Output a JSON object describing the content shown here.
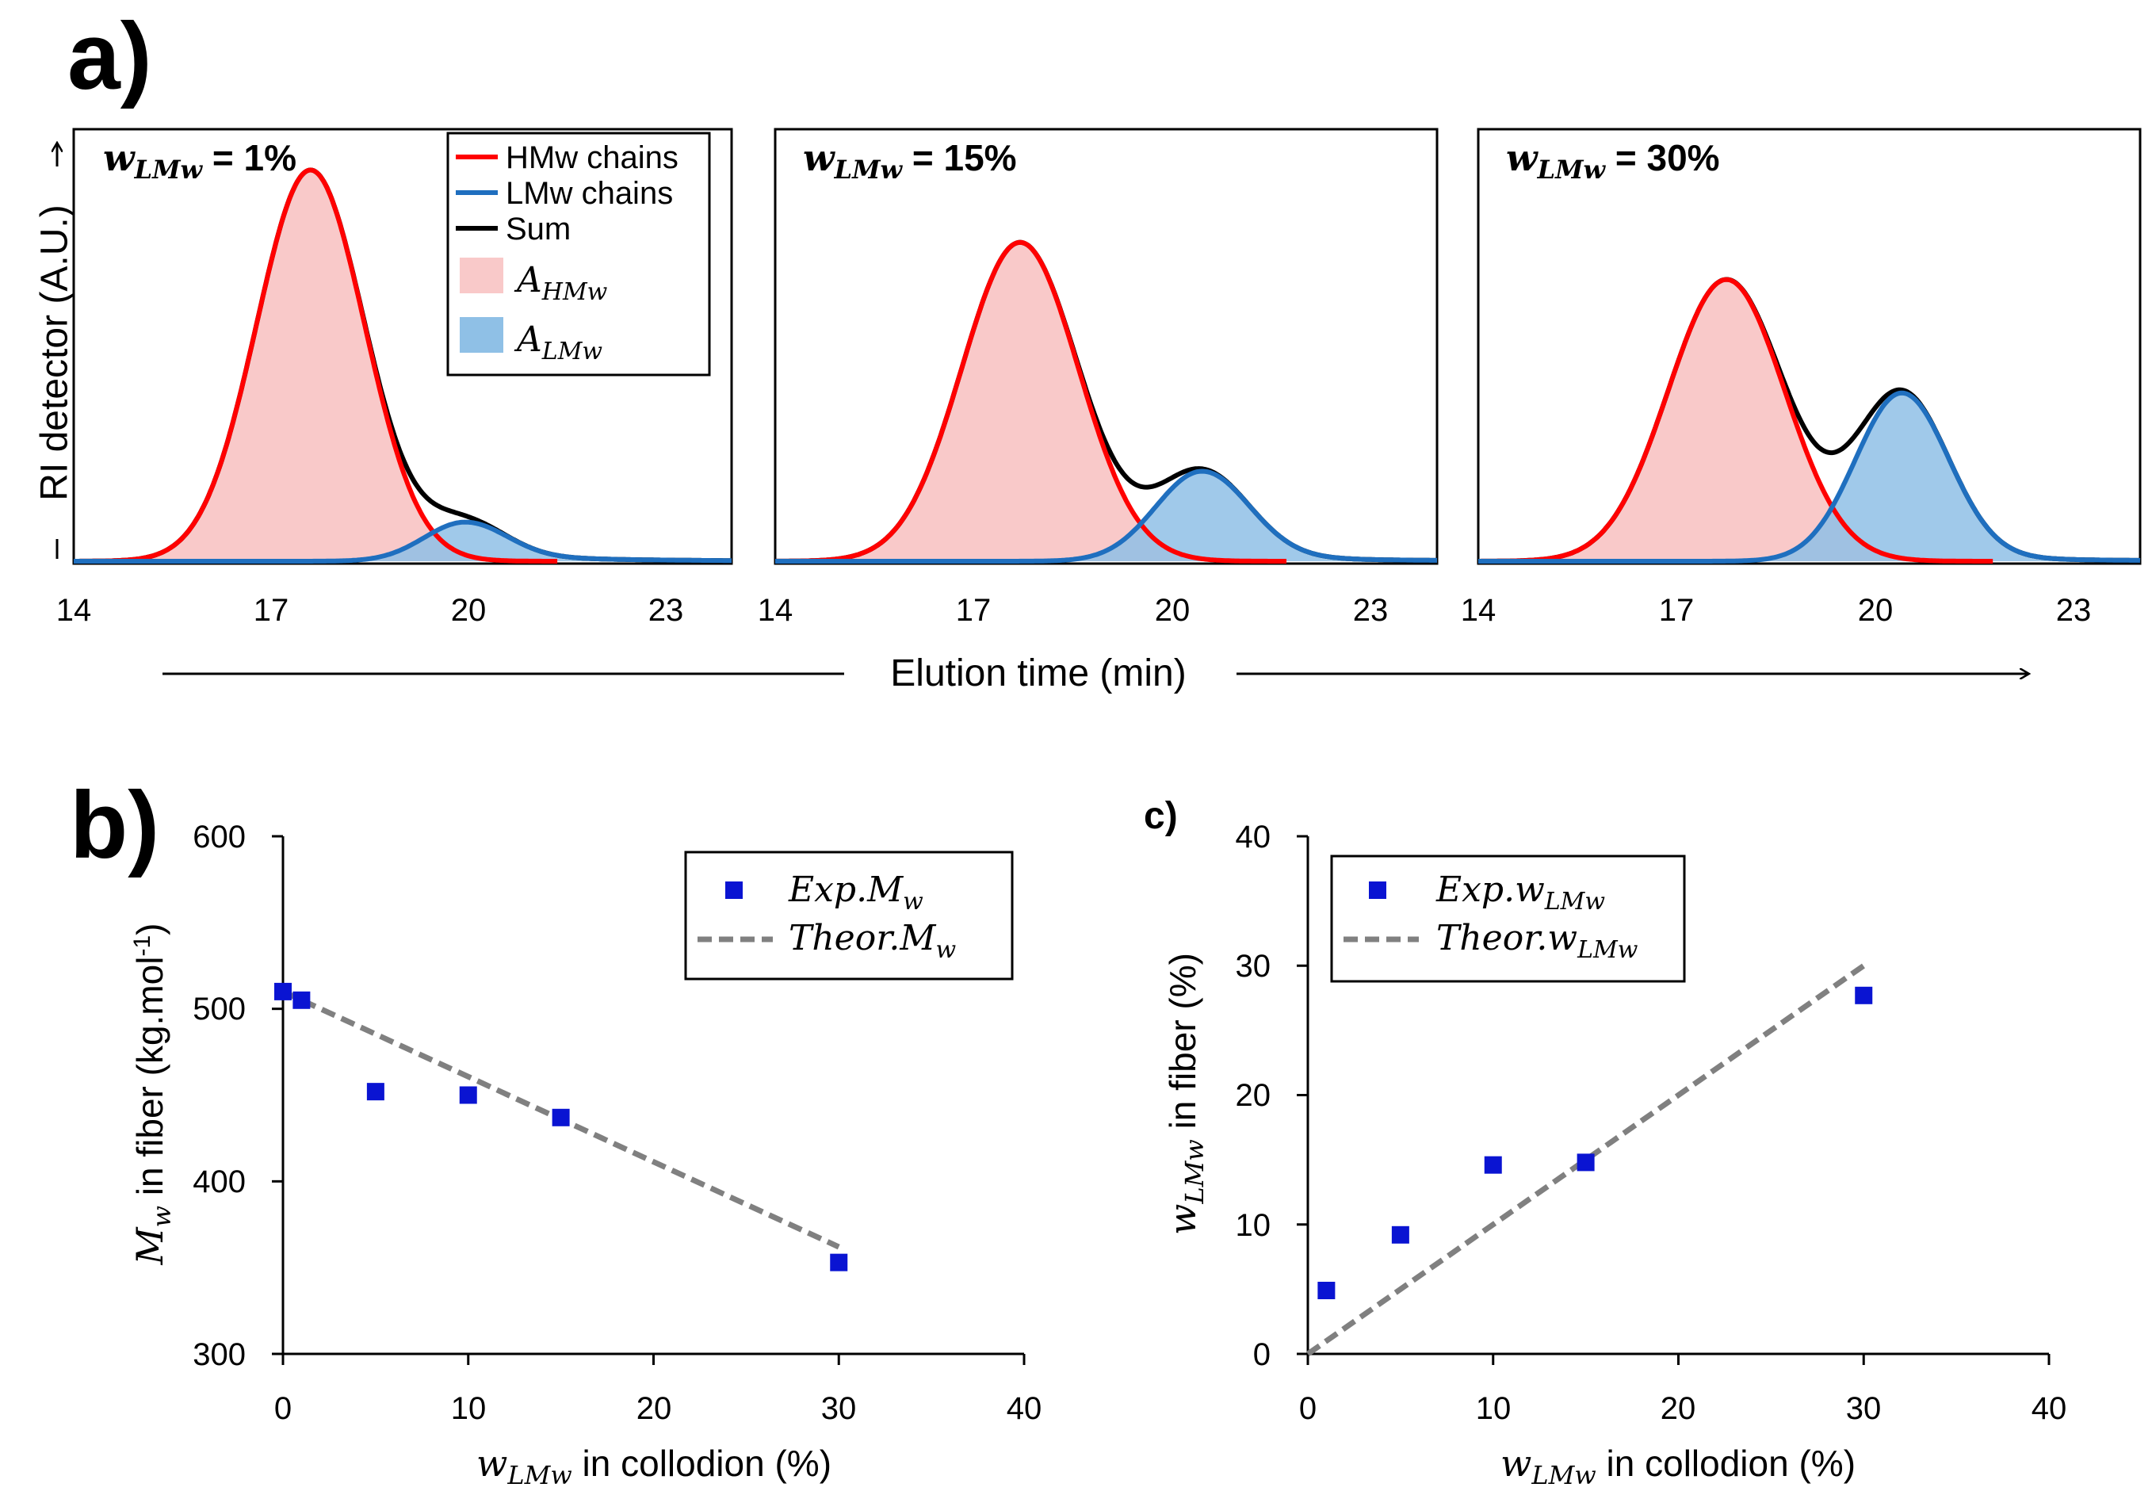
{
  "panel_labels": {
    "a": "a)",
    "b": "b)",
    "c": "c)"
  },
  "panel_a": {
    "y_axis_label": "RI detector (A.U.)",
    "x_axis_label": "Elution time (min)",
    "legend": {
      "hmw": "HMw chains",
      "lmw": "LMw chains",
      "sum": "Sum",
      "area_hmw_base": "A",
      "area_hmw_sub": "HMw",
      "area_lmw_base": "A",
      "area_lmw_sub": "LMw"
    },
    "colors": {
      "hmw": "#ff0000",
      "lmw": "#1f6fbf",
      "sum": "#000000",
      "hmw_fill": "#f9c9c9",
      "lmw_fill": "#8fc0e6"
    }
  },
  "chart_data": [
    {
      "type": "line",
      "panel": "a-1",
      "title_var_base": "w",
      "title_var_sub": "LMw",
      "title_value": " = 1%",
      "xlim": [
        14,
        24
      ],
      "ylim": [
        0,
        1.08
      ],
      "x_ticks": [
        "14",
        "17",
        "20",
        "23"
      ],
      "series": [
        {
          "name": "HMw chains",
          "mu": 17.6,
          "sigma": 0.82,
          "amp": 1.0
        },
        {
          "name": "LMw chains",
          "mu": 19.95,
          "sigma": 0.62,
          "amp": 0.1,
          "tail": 0.02
        }
      ]
    },
    {
      "type": "line",
      "panel": "a-2",
      "title_var_base": "w",
      "title_var_sub": "LMw",
      "title_value": " = 15%",
      "xlim": [
        14,
        24
      ],
      "ylim": [
        0,
        1.08
      ],
      "x_ticks": [
        "14",
        "17",
        "20",
        "23"
      ],
      "series": [
        {
          "name": "HMw chains",
          "mu": 17.7,
          "sigma": 0.88,
          "amp": 0.815
        },
        {
          "name": "LMw chains",
          "mu": 20.45,
          "sigma": 0.7,
          "amp": 0.23,
          "tail": 0.02
        }
      ]
    },
    {
      "type": "line",
      "panel": "a-3",
      "title_var_base": "w",
      "title_var_sub": "LMw",
      "title_value": " = 30%",
      "xlim": [
        14,
        24
      ],
      "ylim": [
        0,
        1.08
      ],
      "x_ticks": [
        "14",
        "17",
        "20",
        "23"
      ],
      "series": [
        {
          "name": "HMw chains",
          "mu": 17.75,
          "sigma": 0.88,
          "amp": 0.72
        },
        {
          "name": "LMw chains",
          "mu": 20.4,
          "sigma": 0.7,
          "amp": 0.43,
          "tail": 0.02
        }
      ]
    },
    {
      "type": "scatter",
      "panel": "b",
      "xlabel_base": "w",
      "xlabel_sub": "LMw",
      "xlabel_rest": " in collodion (%)",
      "ylabel_base": "M",
      "ylabel_sub": "w",
      "ylabel_rest": " in fiber (kg.mol",
      "ylabel_sup": "-1",
      "ylabel_close": ")",
      "xlim": [
        0,
        40
      ],
      "ylim": [
        300,
        600
      ],
      "x_ticks": [
        "0",
        "10",
        "20",
        "30",
        "40"
      ],
      "y_ticks": [
        "300",
        "400",
        "500",
        "600"
      ],
      "series": [
        {
          "name": "Exp. Mw",
          "legend_base": "Exp.M",
          "legend_sub": "w",
          "x": [
            0,
            1,
            5,
            10,
            15,
            30
          ],
          "y": [
            510,
            505,
            452,
            450,
            437,
            353
          ]
        },
        {
          "name": "Theor. Mw",
          "legend_base": "Theor.M",
          "legend_sub": "w",
          "x": [
            0,
            30
          ],
          "y": [
            510,
            362
          ]
        }
      ]
    },
    {
      "type": "scatter",
      "panel": "c",
      "xlabel_base": "w",
      "xlabel_sub": "LMw",
      "xlabel_rest": " in collodion (%)",
      "ylabel_base": "w",
      "ylabel_sub": "LMw",
      "ylabel_rest": " in fiber (%)",
      "xlim": [
        0,
        40
      ],
      "ylim": [
        0,
        40
      ],
      "x_ticks": [
        "0",
        "10",
        "20",
        "30",
        "40"
      ],
      "y_ticks": [
        "0",
        "10",
        "20",
        "30",
        "40"
      ],
      "series": [
        {
          "name": "Exp. wLMw",
          "legend_base": "Exp.w",
          "legend_sub": "LMw",
          "x": [
            1,
            5,
            10,
            15,
            30
          ],
          "y": [
            4.9,
            9.2,
            14.6,
            14.8,
            27.7
          ]
        },
        {
          "name": "Theor. wLMw",
          "legend_base": "Theor.w",
          "legend_sub": "LMw",
          "x": [
            0,
            30
          ],
          "y": [
            0,
            30
          ]
        }
      ]
    }
  ]
}
